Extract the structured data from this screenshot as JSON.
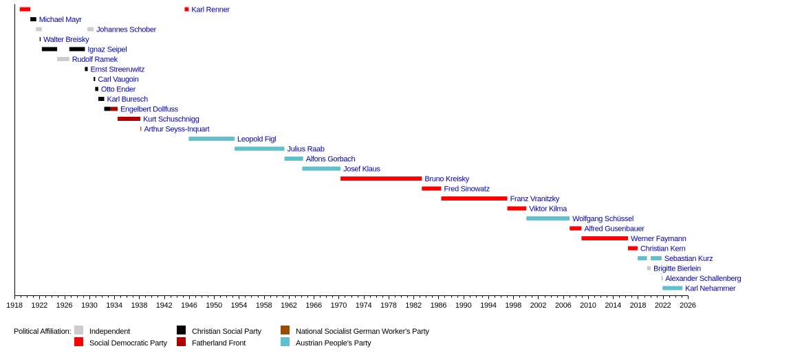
{
  "chart_data": {
    "type": "timeline",
    "title": "",
    "xlabel": "",
    "ylabel": "",
    "xlim": [
      1918,
      2026
    ],
    "x_ticks": [
      1918,
      1922,
      1926,
      1930,
      1934,
      1938,
      1942,
      1946,
      1950,
      1954,
      1958,
      1962,
      1966,
      1970,
      1974,
      1978,
      1982,
      1986,
      1990,
      1994,
      1998,
      2002,
      2006,
      2010,
      2014,
      2018,
      2022,
      2026
    ],
    "minor_tick_step": 1,
    "grid": false,
    "legend_position": "bottom",
    "parties": {
      "independent": {
        "name": "Independent",
        "color": "#cccccc"
      },
      "spo": {
        "name": "Social Democratic Party",
        "color": "#ff0000"
      },
      "csp": {
        "name": "Christian Social Party",
        "color": "#000000"
      },
      "vf": {
        "name": "Fatherland Front",
        "color": "#b00000"
      },
      "nsdap": {
        "name": "National Socialist German Worker's Party",
        "color": "#994c00"
      },
      "ovp": {
        "name": "Austrian People's Party",
        "color": "#62c0cc"
      }
    },
    "rows": [
      {
        "name": "Karl Renner",
        "terms": [
          {
            "start": 1918.85,
            "end": 1920.55,
            "party": "spo"
          },
          {
            "start": 1945.3,
            "end": 1945.95,
            "party": "spo"
          }
        ]
      },
      {
        "name": "Michael Mayr",
        "terms": [
          {
            "start": 1920.55,
            "end": 1921.5,
            "party": "csp"
          }
        ]
      },
      {
        "name": "Johannes Schober",
        "terms": [
          {
            "start": 1921.45,
            "end": 1922.4,
            "party": "independent"
          },
          {
            "start": 1929.7,
            "end": 1930.7,
            "party": "independent"
          }
        ]
      },
      {
        "name": "Walter Breisky",
        "terms": [
          {
            "start": 1922.05,
            "end": 1922.2,
            "party": "csp"
          }
        ]
      },
      {
        "name": "Ignaz Seipel",
        "terms": [
          {
            "start": 1922.4,
            "end": 1924.85,
            "party": "csp"
          },
          {
            "start": 1926.8,
            "end": 1929.3,
            "party": "csp"
          }
        ]
      },
      {
        "name": "Rudolf Ramek",
        "terms": [
          {
            "start": 1924.85,
            "end": 1926.8,
            "party": "independent"
          }
        ]
      },
      {
        "name": "Ernst Streeruwitz",
        "terms": [
          {
            "start": 1929.3,
            "end": 1929.75,
            "party": "csp"
          }
        ]
      },
      {
        "name": "Carl Vaugoin",
        "terms": [
          {
            "start": 1930.7,
            "end": 1930.95,
            "party": "csp"
          }
        ]
      },
      {
        "name": "Otto Ender",
        "terms": [
          {
            "start": 1930.95,
            "end": 1931.45,
            "party": "csp"
          }
        ]
      },
      {
        "name": "Karl Buresch",
        "terms": [
          {
            "start": 1931.45,
            "end": 1932.4,
            "party": "csp"
          }
        ]
      },
      {
        "name": "Engelbert Dollfuss",
        "terms": [
          {
            "start": 1932.4,
            "end": 1933.4,
            "party": "csp"
          },
          {
            "start": 1933.4,
            "end": 1934.55,
            "party": "vf"
          }
        ]
      },
      {
        "name": "Kurt Schuschnigg",
        "terms": [
          {
            "start": 1934.55,
            "end": 1938.2,
            "party": "vf"
          }
        ]
      },
      {
        "name": "Arthur Seyss-Inquart",
        "terms": [
          {
            "start": 1938.2,
            "end": 1938.35,
            "party": "nsdap"
          }
        ]
      },
      {
        "name": "Leopold Figl",
        "terms": [
          {
            "start": 1945.95,
            "end": 1953.3,
            "party": "ovp"
          }
        ]
      },
      {
        "name": "Julius Raab",
        "terms": [
          {
            "start": 1953.3,
            "end": 1961.3,
            "party": "ovp"
          }
        ]
      },
      {
        "name": "Alfons Gorbach",
        "terms": [
          {
            "start": 1961.3,
            "end": 1964.3,
            "party": "ovp"
          }
        ]
      },
      {
        "name": "Josef Klaus",
        "terms": [
          {
            "start": 1964.15,
            "end": 1970.3,
            "party": "ovp"
          }
        ]
      },
      {
        "name": "Bruno Kreisky",
        "terms": [
          {
            "start": 1970.3,
            "end": 1983.35,
            "party": "spo"
          }
        ]
      },
      {
        "name": "Fred Sinowatz",
        "terms": [
          {
            "start": 1983.35,
            "end": 1986.45,
            "party": "spo"
          }
        ]
      },
      {
        "name": "Franz Vranitzky",
        "terms": [
          {
            "start": 1986.45,
            "end": 1997.05,
            "party": "spo"
          }
        ]
      },
      {
        "name": "Viktor Kilma",
        "terms": [
          {
            "start": 1997.05,
            "end": 2000.1,
            "party": "spo"
          }
        ]
      },
      {
        "name": "Wolfgang Schüssel",
        "terms": [
          {
            "start": 2000.1,
            "end": 2007.05,
            "party": "ovp"
          }
        ]
      },
      {
        "name": "Alfred Gusenbauer",
        "terms": [
          {
            "start": 2007.05,
            "end": 2008.95,
            "party": "spo"
          }
        ]
      },
      {
        "name": "Werner Faymann",
        "terms": [
          {
            "start": 2008.95,
            "end": 2016.4,
            "party": "spo"
          }
        ]
      },
      {
        "name": "Christian Kern",
        "terms": [
          {
            "start": 2016.4,
            "end": 2017.95,
            "party": "spo"
          }
        ]
      },
      {
        "name": "Sebastian Kurz",
        "terms": [
          {
            "start": 2017.95,
            "end": 2019.45,
            "party": "ovp"
          },
          {
            "start": 2020.05,
            "end": 2021.8,
            "party": "ovp"
          }
        ]
      },
      {
        "name": "Brigitte Bierlein",
        "terms": [
          {
            "start": 2019.45,
            "end": 2020.05,
            "party": "independent"
          }
        ]
      },
      {
        "name": "Alexander Schallenberg",
        "terms": [
          {
            "start": 2021.8,
            "end": 2021.95,
            "party": "ovp"
          }
        ]
      },
      {
        "name": "Karl Nehammer",
        "terms": [
          {
            "start": 2021.95,
            "end": 2025.15,
            "party": "ovp"
          }
        ]
      }
    ]
  },
  "legend": {
    "title": "Political Affiliation:",
    "items": [
      {
        "label": "Independent",
        "color": "#cccccc"
      },
      {
        "label": "Social Democratic Party",
        "color": "#ff0000"
      },
      {
        "label": "Christian Social Party",
        "color": "#000000"
      },
      {
        "label": "Fatherland Front",
        "color": "#b00000"
      },
      {
        "label": "National Socialist German Worker's Party",
        "color": "#994c00"
      },
      {
        "label": "Austrian People's Party",
        "color": "#62c0cc"
      }
    ]
  }
}
